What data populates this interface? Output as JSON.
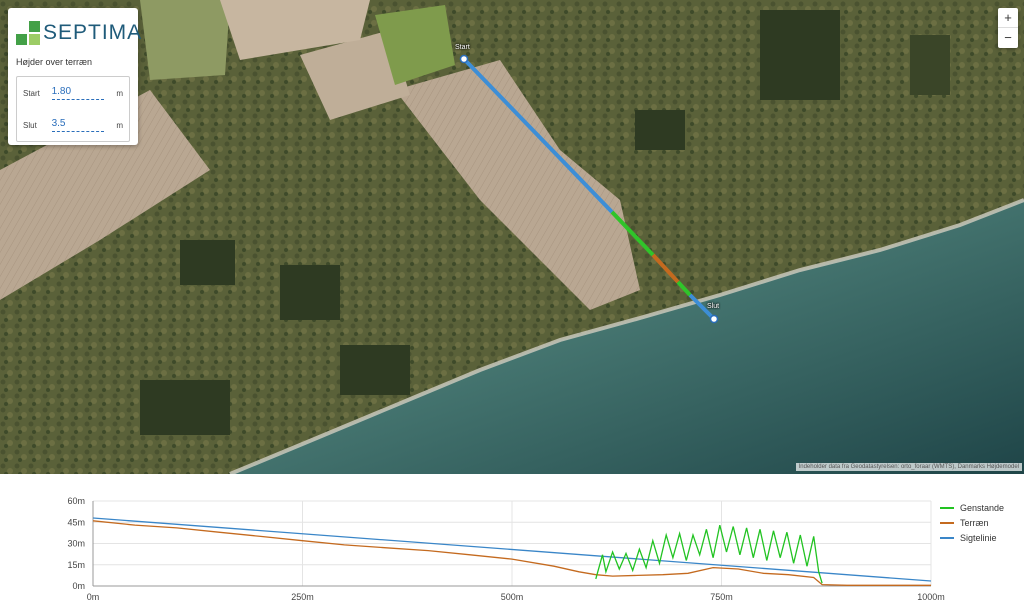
{
  "map": {
    "logo_text": "SEPTIMA",
    "panel_title": "Højder over terræn",
    "heights": [
      {
        "label": "Start",
        "value": "1.80",
        "unit": "m"
      },
      {
        "label": "Slut",
        "value": "3.5",
        "unit": "m"
      }
    ],
    "zoom_in": "+",
    "zoom_out": "−",
    "start_label": "Start",
    "end_label": "Slut",
    "attribution": "Indeholder data fra Geodatastyrelsen: orto_foraar (WMTS), Danmarks Højdemodel",
    "colors": {
      "sightline": "#3d8ed6",
      "objects": "#30c42a",
      "terrain": "#c46a1f",
      "sea": "#3d7272",
      "land": "#56613a"
    }
  },
  "chart_data": {
    "type": "line",
    "x_ticks": [
      "0m",
      "250m",
      "500m",
      "750m",
      "1000m"
    ],
    "y_ticks": [
      "0m",
      "15m",
      "30m",
      "45m",
      "60m"
    ],
    "xlim": [
      0,
      1000
    ],
    "ylim": [
      0,
      60
    ],
    "grid": true,
    "legend_position": "right",
    "series": [
      {
        "name": "Genstande",
        "color": "#22c322",
        "x": [
          600,
          608,
          612,
          620,
          628,
          636,
          644,
          652,
          660,
          668,
          676,
          684,
          692,
          700,
          708,
          716,
          724,
          732,
          740,
          748,
          756,
          764,
          772,
          780,
          788,
          796,
          804,
          812,
          820,
          828,
          836,
          844,
          852,
          860,
          866,
          870
        ],
        "values": [
          5,
          22,
          10,
          24,
          12,
          23,
          11,
          26,
          13,
          32,
          16,
          36,
          20,
          37,
          18,
          36,
          22,
          40,
          20,
          43,
          24,
          42,
          22,
          41,
          20,
          40,
          18,
          39,
          20,
          38,
          16,
          36,
          14,
          35,
          10,
          2
        ]
      },
      {
        "name": "Terræn",
        "color": "#c46a1f",
        "x": [
          0,
          50,
          100,
          150,
          200,
          250,
          300,
          350,
          400,
          450,
          500,
          550,
          580,
          600,
          620,
          650,
          680,
          710,
          740,
          770,
          800,
          830,
          860,
          870,
          900,
          930,
          960,
          1000
        ],
        "values": [
          46,
          43,
          41,
          38,
          35,
          32,
          29,
          27,
          25,
          22,
          19,
          14,
          10,
          8,
          7,
          7.5,
          8,
          9,
          13,
          12,
          9,
          8,
          6,
          1,
          0.5,
          0.5,
          0.5,
          0.5
        ]
      },
      {
        "name": "Sigtelinie",
        "color": "#3a86c8",
        "x": [
          0,
          1000
        ],
        "values": [
          48,
          3.5
        ]
      }
    ]
  }
}
